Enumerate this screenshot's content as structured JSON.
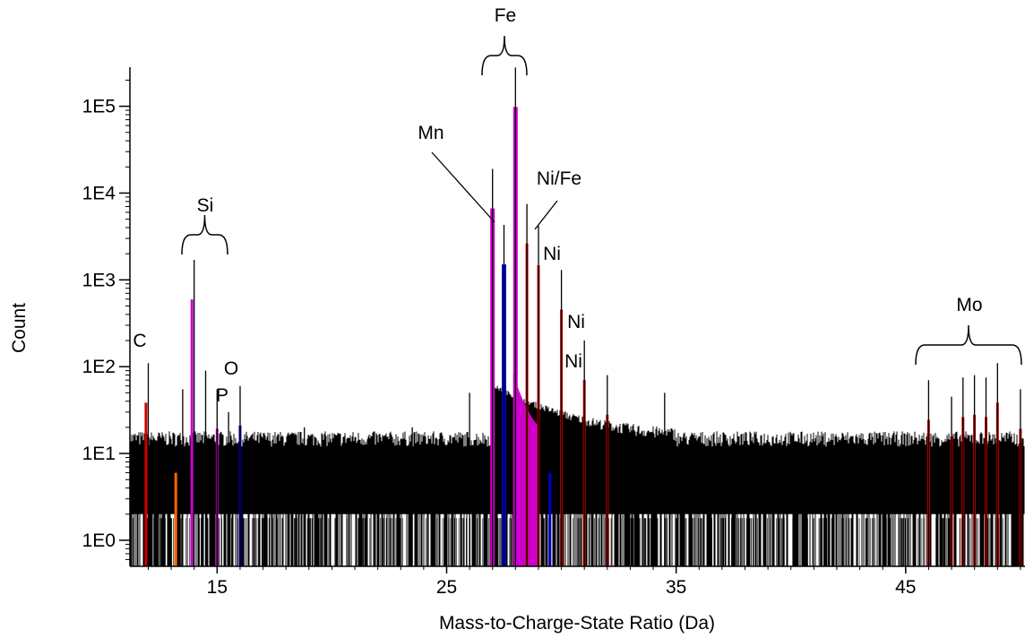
{
  "chart_data": {
    "type": "line",
    "title": "",
    "xlabel": "Mass-to-Charge-State Ratio (Da)",
    "ylabel": "Count",
    "y_scale": "log",
    "xlim": [
      11.2,
      50.2
    ],
    "ylim_log10": [
      -0.3,
      5.45
    ],
    "x_ticks": [
      15,
      25,
      35,
      45
    ],
    "x_tick_labels": [
      "15",
      "25",
      "35",
      "45"
    ],
    "y_ticks": [
      1,
      10,
      100,
      1000,
      10000,
      100000
    ],
    "y_tick_labels": [
      "1E0",
      "1E1",
      "1E2",
      "1E3",
      "1E4",
      "1E5"
    ],
    "noise_floor": {
      "description_free_band": true,
      "level_low": 2,
      "level_high": 12,
      "x_range": [
        11.2,
        50.2
      ]
    },
    "series": [
      {
        "color": "#000000",
        "peaks": [
          {
            "x": 12.0,
            "y": 110
          },
          {
            "x": 13.5,
            "y": 55
          },
          {
            "x": 14.0,
            "y": 1700
          },
          {
            "x": 14.5,
            "y": 90
          },
          {
            "x": 15.0,
            "y": 55
          },
          {
            "x": 15.5,
            "y": 30
          },
          {
            "x": 16.0,
            "y": 60
          },
          {
            "x": 18.8,
            "y": 20
          },
          {
            "x": 23.5,
            "y": 20
          },
          {
            "x": 26.0,
            "y": 50
          },
          {
            "x": 27.0,
            "y": 19000
          },
          {
            "x": 27.5,
            "y": 4300
          },
          {
            "x": 28.0,
            "y": 280000
          },
          {
            "x": 28.5,
            "y": 7500
          },
          {
            "x": 29.0,
            "y": 4200
          },
          {
            "x": 30.0,
            "y": 1300
          },
          {
            "x": 31.0,
            "y": 200
          },
          {
            "x": 32.0,
            "y": 80
          },
          {
            "x": 34.5,
            "y": 50
          },
          {
            "x": 46.0,
            "y": 70
          },
          {
            "x": 47.0,
            "y": 45
          },
          {
            "x": 47.5,
            "y": 75
          },
          {
            "x": 48.0,
            "y": 80
          },
          {
            "x": 48.5,
            "y": 75
          },
          {
            "x": 49.0,
            "y": 110
          },
          {
            "x": 50.0,
            "y": 55
          }
        ]
      }
    ],
    "ranged_peaks": [
      {
        "x": 11.9,
        "color": "#cc0000"
      },
      {
        "x": 13.9,
        "color": "#cc00cc"
      },
      {
        "x": 15.0,
        "color": "#cc00cc"
      },
      {
        "x": 16.0,
        "color": "#0000cc"
      },
      {
        "x": 13.2,
        "color": "#ff6600"
      },
      {
        "x": 27.0,
        "color": "#cc00cc"
      },
      {
        "x": 27.5,
        "color": "#0000cc"
      },
      {
        "x": 28.0,
        "color": "#cc00cc"
      },
      {
        "x": 28.5,
        "color": "#cc0000"
      },
      {
        "x": 29.0,
        "color": "#cc0000"
      },
      {
        "x": 29.5,
        "color": "#0000cc"
      },
      {
        "x": 30.0,
        "color": "#cc0000"
      },
      {
        "x": 31.0,
        "color": "#cc0000"
      },
      {
        "x": 32.0,
        "color": "#cc0000"
      },
      {
        "x": 46.0,
        "color": "#cc0000"
      },
      {
        "x": 47.0,
        "color": "#cc0000"
      },
      {
        "x": 47.5,
        "color": "#cc0000"
      },
      {
        "x": 48.0,
        "color": "#cc0000"
      },
      {
        "x": 48.5,
        "color": "#cc0000"
      },
      {
        "x": 49.0,
        "color": "#cc0000"
      },
      {
        "x": 50.0,
        "color": "#cc0000"
      }
    ],
    "annotations": [
      {
        "text": "C"
      },
      {
        "text": "Si"
      },
      {
        "text": "P"
      },
      {
        "text": "O"
      },
      {
        "text": "Fe"
      },
      {
        "text": "Mn"
      },
      {
        "text": "Ni/Fe"
      },
      {
        "text": "Ni"
      },
      {
        "text": "Ni"
      },
      {
        "text": "Ni"
      },
      {
        "text": "Mo"
      }
    ],
    "grid": false,
    "legend": "none"
  }
}
